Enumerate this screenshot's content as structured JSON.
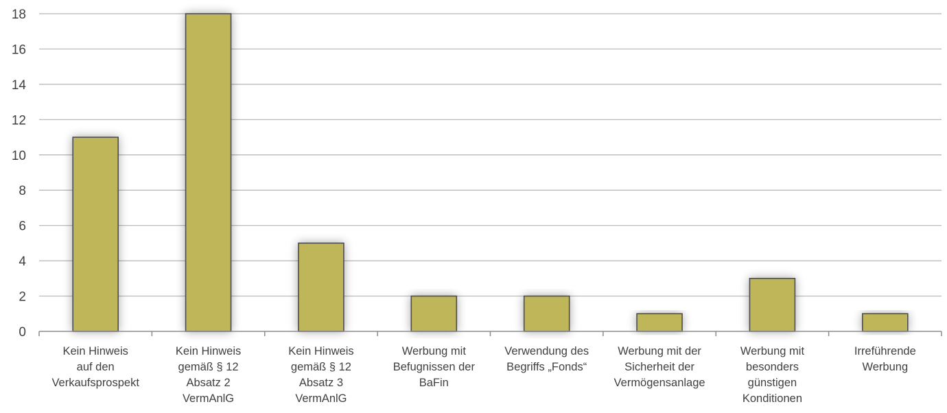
{
  "chart_data": {
    "type": "bar",
    "title": "",
    "xlabel": "",
    "ylabel": "",
    "categories": [
      "Kein Hinweis auf den Verkaufsprospekt",
      "Kein Hinweis gemäß § 12 Absatz 2 VermAnlG",
      "Kein Hinweis gemäß § 12 Absatz 3 VermAnlG",
      "Werbung mit Befugnissen der BaFin",
      "Verwendung des Begriffs „Fonds“",
      "Werbung mit der Sicherheit der Vermögensanlage",
      "Werbung mit besonders günstigen Konditionen",
      "Irreführende Werbung"
    ],
    "category_lines": [
      [
        "Kein Hinweis",
        "auf den",
        "Verkaufsprospekt"
      ],
      [
        "Kein Hinweis",
        "gemäß § 12",
        "Absatz 2",
        "VermAnlG"
      ],
      [
        "Kein Hinweis",
        "gemäß § 12",
        "Absatz 3",
        "VermAnlG"
      ],
      [
        "Werbung mit",
        "Befugnissen der",
        "BaFin"
      ],
      [
        "Verwendung des",
        "Begriffs „Fonds“"
      ],
      [
        "Werbung mit der",
        "Sicherheit der",
        "Vermögensanlage"
      ],
      [
        "Werbung mit",
        "besonders",
        "günstigen",
        "Konditionen"
      ],
      [
        "Irreführende",
        "Werbung"
      ]
    ],
    "values": [
      11,
      18,
      5,
      2,
      2,
      1,
      3,
      1
    ],
    "ylim": [
      0,
      18
    ],
    "yticks": [
      0,
      2,
      4,
      6,
      8,
      10,
      12,
      14,
      16,
      18
    ],
    "grid": true,
    "legend": "none",
    "colors": {
      "bar_fill": "#bfb65a",
      "bar_stroke": "#4d4d4d",
      "grid": "#b3b3b3",
      "text": "#404040"
    }
  }
}
